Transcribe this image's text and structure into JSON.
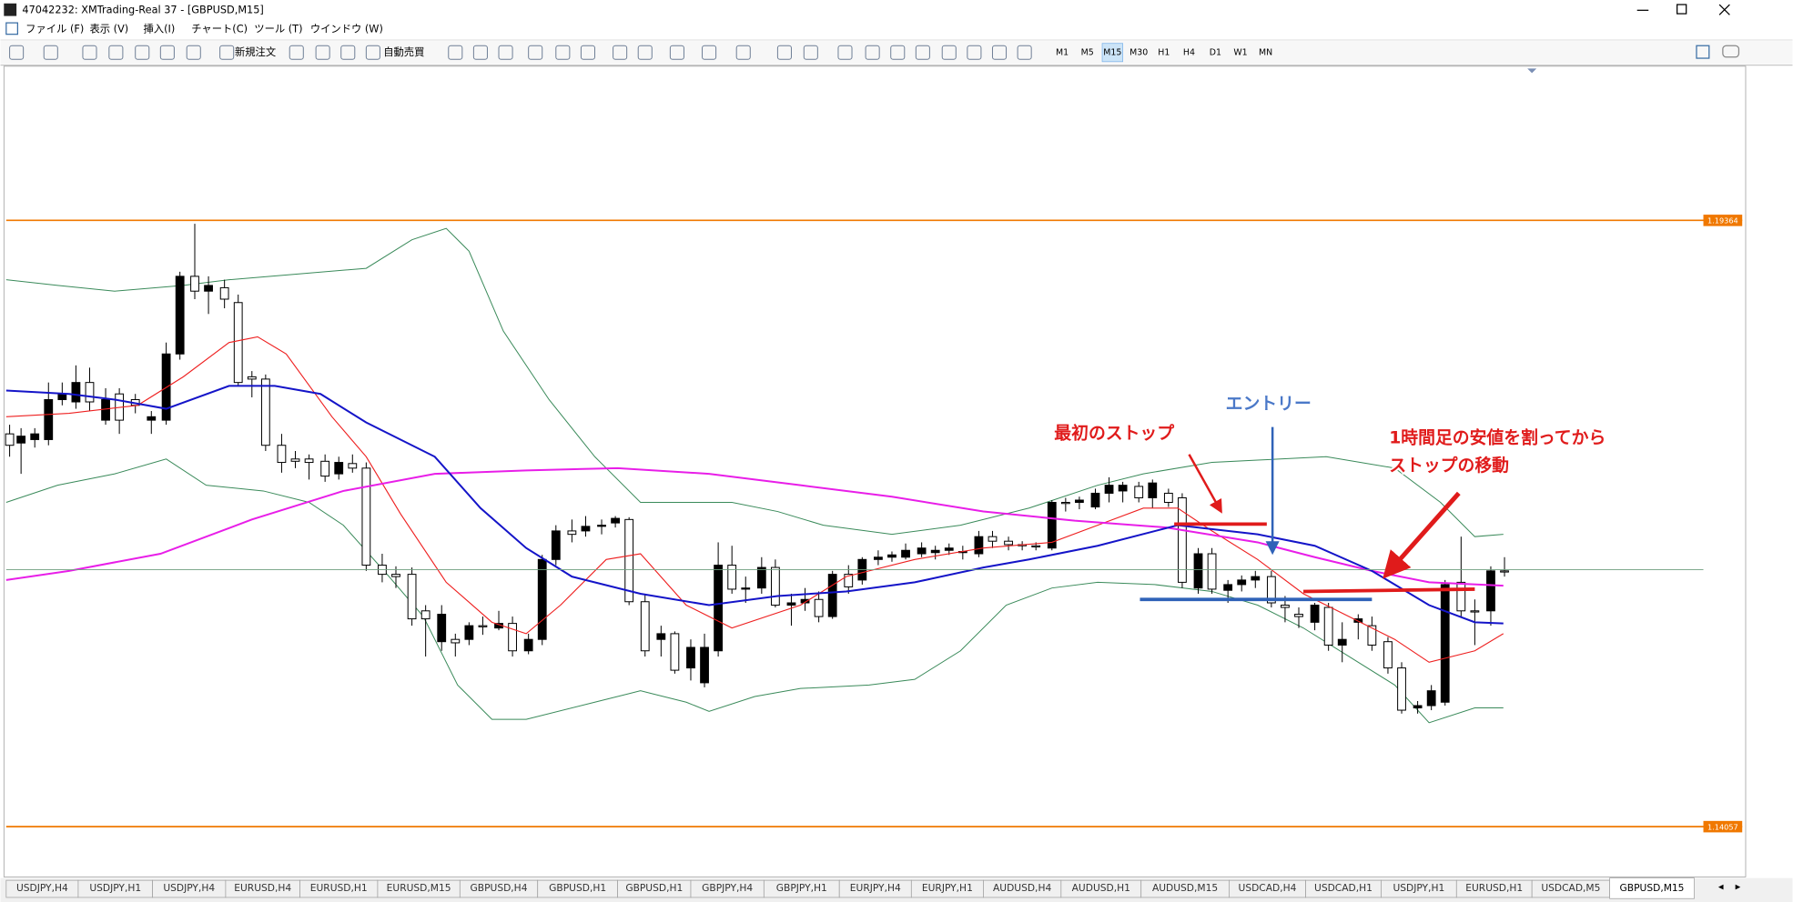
{
  "window": {
    "title": "47042232: XMTrading-Real 37 - [GBPUSD,M15]"
  },
  "menu": [
    "ファイル (F)",
    "表示 (V)",
    "挿入(I)",
    "チャート(C)",
    "ツール (T)",
    "ウインドウ (W)"
  ],
  "toolbar": {
    "new_order": "新規注文",
    "auto_trading": "自動売買",
    "timeframes": [
      "M1",
      "M5",
      "M15",
      "M30",
      "H1",
      "H4",
      "D1",
      "W1",
      "MN"
    ]
  },
  "price_levels": [
    "1.19364",
    "1.14057"
  ],
  "annotations": {
    "first_stop": "最初のストップ",
    "entry": "エントリー",
    "stop_move": [
      "1時間足の安値を割ってから",
      "ストップの移動"
    ]
  },
  "tabs": [
    "USDJPY,H4",
    "USDJPY,H1",
    "USDJPY,H4",
    "EURUSD,H4",
    "EURUSD,H1",
    "EURUSD,M15",
    "GBPUSD,H4",
    "GBPUSD,H1",
    "GBPUSD,H1",
    "GBPJPY,H4",
    "GBPJPY,H1",
    "EURJPY,H4",
    "EURJPY,H1",
    "AUDUSD,H4",
    "AUDUSD,H1",
    "AUDUSD,M15",
    "USDCAD,H4",
    "USDCAD,H1",
    "USDJPY,H1",
    "EURUSD,H1",
    "USDCAD,M5",
    "GBPUSD,M15"
  ]
}
